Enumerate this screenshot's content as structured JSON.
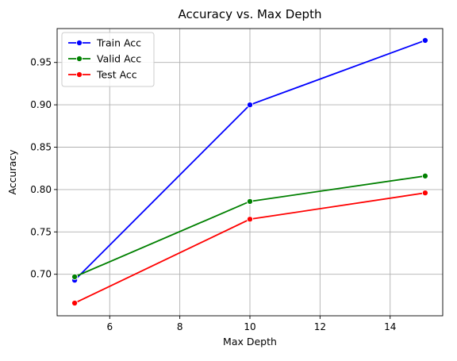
{
  "chart_data": {
    "type": "line",
    "title": "Accuracy vs. Max Depth",
    "xlabel": "Max Depth",
    "ylabel": "Accuracy",
    "xlim": [
      4.5,
      15.5
    ],
    "ylim": [
      0.651,
      0.99
    ],
    "xticks": [
      6,
      8,
      10,
      12,
      14
    ],
    "yticks": [
      0.7,
      0.75,
      0.8,
      0.85,
      0.9,
      0.95
    ],
    "xtick_labels": [
      "6",
      "8",
      "10",
      "12",
      "14"
    ],
    "ytick_labels": [
      "0.70",
      "0.75",
      "0.80",
      "0.85",
      "0.90",
      "0.95"
    ],
    "grid": true,
    "legend_position": "top-left",
    "x": [
      5,
      10,
      15
    ],
    "series": [
      {
        "name": "Train Acc",
        "color": "#0000ff",
        "values": [
          0.693,
          0.9,
          0.976
        ]
      },
      {
        "name": "Valid Acc",
        "color": "#008000",
        "values": [
          0.697,
          0.786,
          0.816
        ]
      },
      {
        "name": "Test Acc",
        "color": "#ff0000",
        "values": [
          0.666,
          0.765,
          0.796
        ]
      }
    ]
  }
}
